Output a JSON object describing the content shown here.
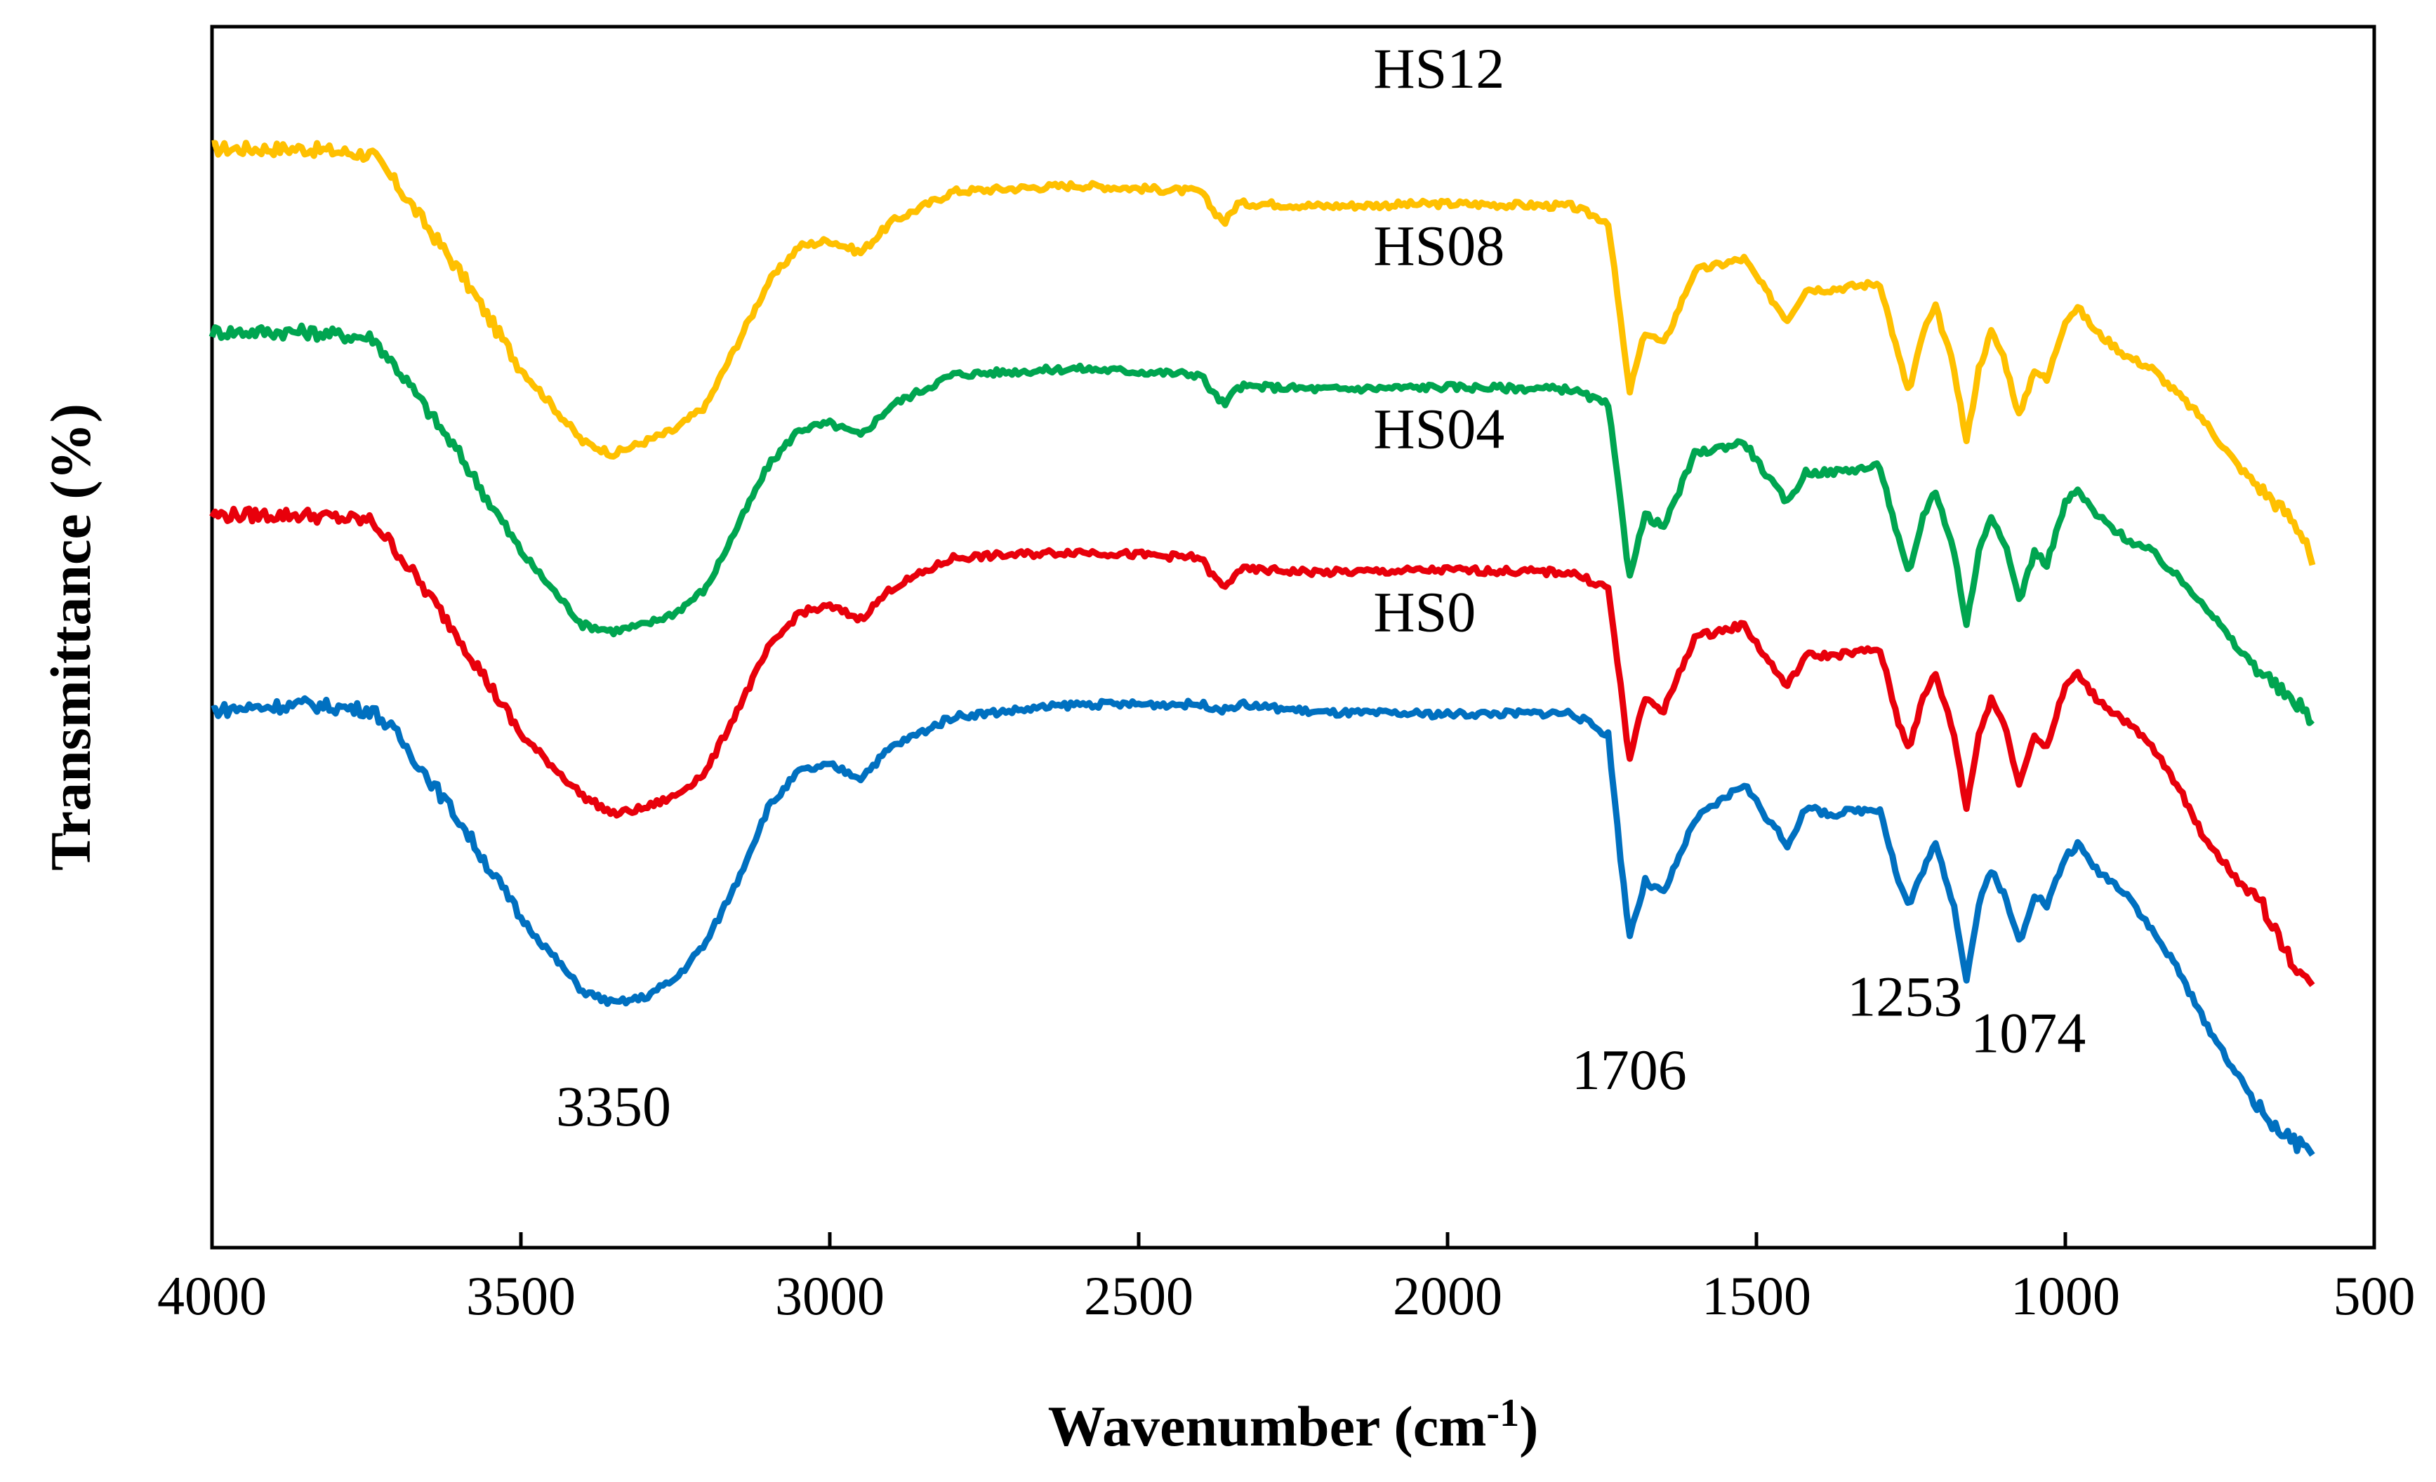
{
  "chart_data": {
    "type": "line",
    "title": "",
    "xlabel": "Wavenumber (cm",
    "xlabel_sup": "-1",
    "xlabel_end": ")",
    "ylabel": "Transmittance (%)",
    "xlim": [
      4000,
      500
    ],
    "x_reversed": true,
    "xticks": [
      4000,
      3500,
      3000,
      2500,
      2000,
      1500,
      1000,
      500
    ],
    "xtick_labels": [
      "4000",
      "3500",
      "3000",
      "2500",
      "2000",
      "1500",
      "1000",
      "500"
    ],
    "yticks_visible": false,
    "ylim": [
      0,
      100
    ],
    "grid": false,
    "legend": "inline labels",
    "series": [
      {
        "name": "HS12",
        "color": "#FFC000",
        "points": [
          [
            4000,
            90
          ],
          [
            3850,
            90
          ],
          [
            3740,
            89.5
          ],
          [
            3700,
            87
          ],
          [
            3600,
            80
          ],
          [
            3500,
            72
          ],
          [
            3400,
            66
          ],
          [
            3350,
            65
          ],
          [
            3300,
            66
          ],
          [
            3250,
            67
          ],
          [
            3200,
            69
          ],
          [
            3150,
            74
          ],
          [
            3100,
            79
          ],
          [
            3050,
            82
          ],
          [
            3000,
            82.5
          ],
          [
            2950,
            81.5
          ],
          [
            2900,
            84
          ],
          [
            2800,
            86.5
          ],
          [
            2600,
            87
          ],
          [
            2400,
            86.5
          ],
          [
            2380,
            85
          ],
          [
            2360,
            84
          ],
          [
            2340,
            85.5
          ],
          [
            2300,
            85.5
          ],
          [
            2200,
            85.3
          ],
          [
            2000,
            85.5
          ],
          [
            1800,
            85.3
          ],
          [
            1740,
            84
          ],
          [
            1720,
            76
          ],
          [
            1706,
            70
          ],
          [
            1680,
            75
          ],
          [
            1650,
            74
          ],
          [
            1600,
            80
          ],
          [
            1520,
            81
          ],
          [
            1480,
            78
          ],
          [
            1450,
            76
          ],
          [
            1420,
            78.5
          ],
          [
            1380,
            78.5
          ],
          [
            1300,
            79
          ],
          [
            1270,
            73
          ],
          [
            1253,
            70
          ],
          [
            1230,
            75
          ],
          [
            1210,
            77
          ],
          [
            1180,
            72
          ],
          [
            1160,
            66
          ],
          [
            1140,
            72
          ],
          [
            1120,
            75
          ],
          [
            1100,
            73
          ],
          [
            1074,
            68
          ],
          [
            1050,
            72
          ],
          [
            1030,
            71
          ],
          [
            1000,
            76
          ],
          [
            980,
            77
          ],
          [
            950,
            75
          ],
          [
            900,
            73
          ],
          [
            860,
            72
          ],
          [
            820,
            70
          ],
          [
            780,
            68
          ],
          [
            720,
            64
          ],
          [
            680,
            62
          ],
          [
            640,
            60
          ],
          [
            610,
            58
          ],
          [
            600,
            56
          ]
        ]
      },
      {
        "name": "HS08",
        "color": "#00A550",
        "points": [
          [
            4000,
            75
          ],
          [
            3850,
            75
          ],
          [
            3740,
            74.5
          ],
          [
            3700,
            72
          ],
          [
            3600,
            65
          ],
          [
            3500,
            57
          ],
          [
            3400,
            51
          ],
          [
            3350,
            50.5
          ],
          [
            3300,
            51
          ],
          [
            3250,
            52
          ],
          [
            3200,
            54
          ],
          [
            3150,
            59
          ],
          [
            3100,
            64
          ],
          [
            3050,
            67
          ],
          [
            3000,
            67.5
          ],
          [
            2950,
            66.5
          ],
          [
            2900,
            69
          ],
          [
            2800,
            71.5
          ],
          [
            2600,
            72
          ],
          [
            2400,
            71.5
          ],
          [
            2380,
            70
          ],
          [
            2360,
            69
          ],
          [
            2340,
            70.5
          ],
          [
            2300,
            70.5
          ],
          [
            2200,
            70.3
          ],
          [
            2000,
            70.5
          ],
          [
            1800,
            70.3
          ],
          [
            1740,
            69
          ],
          [
            1720,
            61
          ],
          [
            1706,
            55
          ],
          [
            1680,
            60
          ],
          [
            1650,
            59
          ],
          [
            1600,
            65
          ],
          [
            1520,
            66
          ],
          [
            1480,
            63
          ],
          [
            1450,
            61
          ],
          [
            1420,
            63.5
          ],
          [
            1380,
            63.5
          ],
          [
            1300,
            64
          ],
          [
            1270,
            58
          ],
          [
            1253,
            55
          ],
          [
            1230,
            60
          ],
          [
            1210,
            62
          ],
          [
            1180,
            57
          ],
          [
            1160,
            51
          ],
          [
            1140,
            57
          ],
          [
            1120,
            60
          ],
          [
            1100,
            58
          ],
          [
            1074,
            53
          ],
          [
            1050,
            57
          ],
          [
            1030,
            56
          ],
          [
            1000,
            61
          ],
          [
            980,
            62
          ],
          [
            950,
            60
          ],
          [
            900,
            58
          ],
          [
            860,
            57
          ],
          [
            820,
            55
          ],
          [
            780,
            53
          ],
          [
            720,
            49
          ],
          [
            680,
            47
          ],
          [
            640,
            45
          ],
          [
            610,
            44
          ],
          [
            600,
            43
          ]
        ]
      },
      {
        "name": "HS04",
        "color": "#E8000B",
        "points": [
          [
            4000,
            60
          ],
          [
            3850,
            60
          ],
          [
            3740,
            59.5
          ],
          [
            3700,
            57
          ],
          [
            3600,
            50
          ],
          [
            3500,
            42
          ],
          [
            3400,
            37
          ],
          [
            3350,
            35.5
          ],
          [
            3300,
            36
          ],
          [
            3250,
            37
          ],
          [
            3200,
            39
          ],
          [
            3150,
            44
          ],
          [
            3100,
            49
          ],
          [
            3050,
            52
          ],
          [
            3000,
            52.5
          ],
          [
            2950,
            51.5
          ],
          [
            2900,
            54
          ],
          [
            2800,
            56.5
          ],
          [
            2600,
            57
          ],
          [
            2400,
            56.5
          ],
          [
            2380,
            55
          ],
          [
            2360,
            54
          ],
          [
            2340,
            55.5
          ],
          [
            2300,
            55.5
          ],
          [
            2200,
            55.3
          ],
          [
            2000,
            55.5
          ],
          [
            1800,
            55.3
          ],
          [
            1740,
            54
          ],
          [
            1720,
            46
          ],
          [
            1706,
            40
          ],
          [
            1680,
            45
          ],
          [
            1650,
            44
          ],
          [
            1600,
            50
          ],
          [
            1520,
            51
          ],
          [
            1480,
            48
          ],
          [
            1450,
            46
          ],
          [
            1420,
            48.5
          ],
          [
            1380,
            48.5
          ],
          [
            1300,
            49
          ],
          [
            1270,
            43
          ],
          [
            1253,
            41
          ],
          [
            1230,
            45
          ],
          [
            1210,
            47
          ],
          [
            1180,
            42
          ],
          [
            1160,
            36
          ],
          [
            1140,
            42
          ],
          [
            1120,
            45
          ],
          [
            1100,
            43
          ],
          [
            1074,
            38
          ],
          [
            1050,
            42
          ],
          [
            1030,
            41
          ],
          [
            1000,
            46
          ],
          [
            980,
            47
          ],
          [
            950,
            45
          ],
          [
            900,
            43
          ],
          [
            860,
            41
          ],
          [
            820,
            38
          ],
          [
            780,
            34
          ],
          [
            720,
            30
          ],
          [
            680,
            28
          ],
          [
            640,
            24
          ],
          [
            610,
            22
          ],
          [
            600,
            21
          ]
        ]
      },
      {
        "name": "HS0",
        "color": "#0070C0",
        "points": [
          [
            4000,
            44
          ],
          [
            3850,
            44.5
          ],
          [
            3740,
            44
          ],
          [
            3700,
            42
          ],
          [
            3600,
            35
          ],
          [
            3500,
            27
          ],
          [
            3400,
            21
          ],
          [
            3350,
            20
          ],
          [
            3300,
            20.5
          ],
          [
            3250,
            22
          ],
          [
            3200,
            25
          ],
          [
            3150,
            30
          ],
          [
            3100,
            36
          ],
          [
            3050,
            39
          ],
          [
            3000,
            39.5
          ],
          [
            2950,
            38.5
          ],
          [
            2900,
            41
          ],
          [
            2800,
            43.5
          ],
          [
            2600,
            44.5
          ],
          [
            2400,
            44.5
          ],
          [
            2380,
            44.3
          ],
          [
            2360,
            44
          ],
          [
            2340,
            44.5
          ],
          [
            2300,
            44.3
          ],
          [
            2200,
            43.8
          ],
          [
            2000,
            43.7
          ],
          [
            1800,
            43.8
          ],
          [
            1740,
            42
          ],
          [
            1720,
            32
          ],
          [
            1706,
            25.5
          ],
          [
            1680,
            30
          ],
          [
            1650,
            29
          ],
          [
            1600,
            35
          ],
          [
            1520,
            38
          ],
          [
            1480,
            35
          ],
          [
            1450,
            33
          ],
          [
            1420,
            36
          ],
          [
            1380,
            35.5
          ],
          [
            1300,
            36
          ],
          [
            1270,
            30
          ],
          [
            1253,
            28
          ],
          [
            1230,
            31
          ],
          [
            1210,
            33
          ],
          [
            1180,
            28
          ],
          [
            1160,
            22
          ],
          [
            1140,
            28
          ],
          [
            1120,
            31
          ],
          [
            1100,
            29
          ],
          [
            1074,
            25
          ],
          [
            1050,
            29
          ],
          [
            1030,
            28
          ],
          [
            1000,
            32
          ],
          [
            980,
            33
          ],
          [
            950,
            31
          ],
          [
            900,
            29
          ],
          [
            860,
            26
          ],
          [
            820,
            23
          ],
          [
            780,
            19
          ],
          [
            720,
            14
          ],
          [
            680,
            11
          ],
          [
            640,
            9
          ],
          [
            610,
            8
          ],
          [
            600,
            8
          ]
        ]
      }
    ],
    "series_labels": [
      {
        "text": "HS12",
        "x": 2120,
        "y": 95
      },
      {
        "text": "HS08",
        "x": 2120,
        "y": 80.5
      },
      {
        "text": "HS04",
        "x": 2120,
        "y": 65.5
      },
      {
        "text": "HS0",
        "x": 2120,
        "y": 50.5
      }
    ],
    "annotations": [
      {
        "text": "3350",
        "x": 3350,
        "y": 10
      },
      {
        "text": "1706",
        "x": 1706,
        "y": 13
      },
      {
        "text": "1253",
        "x": 1260,
        "y": 19
      },
      {
        "text": "1074",
        "x": 1060,
        "y": 16
      }
    ]
  }
}
